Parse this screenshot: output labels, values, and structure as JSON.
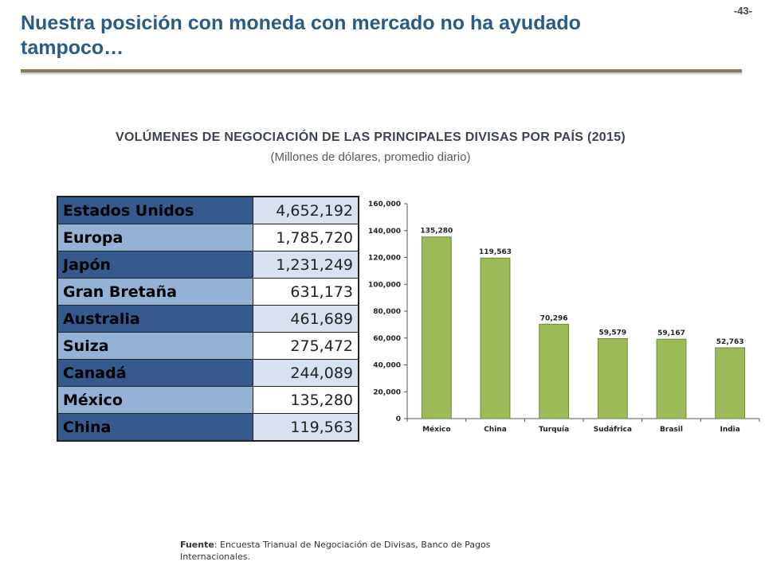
{
  "page_number": "-43-",
  "title": "Nuestra posición con moneda con mercado no ha ayudado tampoco…",
  "heading": "VOLÚMENES DE NEGOCIACIÓN DE LAS PRINCIPALES DIVISAS POR PAÍS (2015)",
  "subheading": "(Millones de dólares, promedio diario)",
  "table": {
    "rows": [
      {
        "country": "Estados Unidos",
        "value": "4,652,192"
      },
      {
        "country": "Europa",
        "value": "1,785,720"
      },
      {
        "country": "Japón",
        "value": "1,231,249"
      },
      {
        "country": "Gran Bretaña",
        "value": "631,173"
      },
      {
        "country": "Australia",
        "value": "461,689"
      },
      {
        "country": "Suiza",
        "value": "275,472"
      },
      {
        "country": "Canadá",
        "value": "244,089"
      },
      {
        "country": "México",
        "value": "135,280"
      },
      {
        "country": "China",
        "value": "119,563"
      }
    ]
  },
  "colors": {
    "dark_row": "#345a8e",
    "light_row": "#94b1d6",
    "bar": "#9bbb59",
    "bar_edge": "#71893f"
  },
  "chart_data": {
    "type": "bar",
    "categories": [
      "México",
      "China",
      "Turquía",
      "Sudáfrica",
      "Brasil",
      "India"
    ],
    "values": [
      135280,
      119563,
      70296,
      59579,
      59167,
      52763
    ],
    "data_labels": [
      "135,280",
      "119,563",
      "70,296",
      "59,579",
      "59,167",
      "52,763"
    ],
    "yticks": [
      "0",
      "20,000",
      "40,000",
      "60,000",
      "80,000",
      "100,000",
      "120,000",
      "140,000",
      "160,000"
    ],
    "ylim": [
      0,
      160000
    ],
    "grid": false,
    "legend": "none"
  },
  "source": {
    "label": "Fuente",
    "text": ": Encuesta Trianual de Negociación de Divisas, Banco de Pagos Internacionales."
  }
}
